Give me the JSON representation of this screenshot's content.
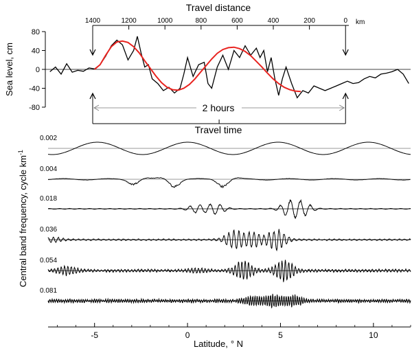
{
  "chart_data": [
    {
      "type": "line",
      "id": "sea-level",
      "top_axis": {
        "title": "Travel distance",
        "unit": "km",
        "ticks": [
          1400,
          1200,
          1000,
          800,
          600,
          400,
          200,
          0
        ]
      },
      "ylabel": "Sea level, cm",
      "ylim": [
        -80,
        80
      ],
      "yticks": [
        80,
        40,
        0,
        -40,
        -80
      ],
      "xlim": [
        -7.5,
        12
      ],
      "annotation": {
        "label": "2  hours",
        "caption": "Travel time",
        "x_start": -5.1,
        "x_end": 8.5
      },
      "series": [
        {
          "role": "observed",
          "color": "#000000",
          "x": [
            -7.4,
            -7.1,
            -6.8,
            -6.5,
            -6.2,
            -5.9,
            -5.6,
            -5.3,
            -5.0,
            -4.7,
            -4.4,
            -4.1,
            -3.8,
            -3.5,
            -3.2,
            -2.9,
            -2.7,
            -2.5,
            -2.3,
            -2.1,
            -1.9,
            -1.6,
            -1.3,
            -1.0,
            -0.7,
            -0.4,
            -0.2,
            0.0,
            0.3,
            0.6,
            0.9,
            1.1,
            1.3,
            1.6,
            1.9,
            2.2,
            2.5,
            2.8,
            3.1,
            3.4,
            3.7,
            3.9,
            4.1,
            4.3,
            4.5,
            4.7,
            4.9,
            5.1,
            5.3,
            5.6,
            5.9,
            6.2,
            6.5,
            6.8,
            7.1,
            7.4,
            7.7,
            8.0,
            8.3,
            8.6,
            8.9,
            9.2,
            9.5,
            9.8,
            10.1,
            10.4,
            10.7,
            11.0,
            11.3,
            11.6,
            11.9
          ],
          "y": [
            -5,
            5,
            -10,
            12,
            -6,
            -2,
            -4,
            3,
            1,
            10,
            28,
            50,
            62,
            52,
            20,
            40,
            70,
            35,
            5,
            10,
            -20,
            -30,
            -45,
            -38,
            -50,
            -40,
            -10,
            25,
            -15,
            10,
            15,
            -30,
            -40,
            5,
            30,
            0,
            40,
            25,
            50,
            30,
            45,
            25,
            40,
            -5,
            25,
            -20,
            -55,
            -20,
            5,
            -30,
            -60,
            -45,
            -50,
            -35,
            -40,
            -45,
            -40,
            -35,
            -30,
            -25,
            -30,
            -28,
            -20,
            -15,
            -18,
            -10,
            -8,
            -5,
            0,
            -10,
            -30
          ]
        },
        {
          "role": "fitted",
          "color": "#e8231f",
          "x": [
            -5.0,
            -4.7,
            -4.4,
            -4.1,
            -3.8,
            -3.5,
            -3.2,
            -2.9,
            -2.6,
            -2.3,
            -2.0,
            -1.7,
            -1.4,
            -1.1,
            -0.8,
            -0.5,
            -0.2,
            0.1,
            0.4,
            0.7,
            1.0,
            1.3,
            1.6,
            1.9,
            2.2,
            2.5,
            2.8,
            3.1,
            3.4,
            3.7,
            4.0,
            4.3,
            4.6,
            4.9,
            5.2,
            5.5,
            5.8,
            6.1
          ],
          "y": [
            0,
            10,
            30,
            48,
            58,
            60,
            57,
            48,
            35,
            18,
            2,
            -14,
            -28,
            -38,
            -43,
            -44,
            -40,
            -32,
            -20,
            -6,
            8,
            22,
            34,
            42,
            46,
            47,
            44,
            38,
            29,
            17,
            5,
            -8,
            -20,
            -30,
            -38,
            -43,
            -46,
            -47
          ]
        }
      ]
    },
    {
      "type": "line",
      "id": "band-filtered",
      "ylabel": "Central band frequency,  cycle  km",
      "ylabel_sup": "-1",
      "xlabel": "Latitude,",
      "xlabel_unit": "° N",
      "xlim": [
        -7.5,
        12
      ],
      "xticks": [
        -5,
        0,
        5,
        10
      ],
      "bands": [
        {
          "label": "0.002",
          "freq": 0.002,
          "envelope": {
            "peaks": [],
            "base": 14
          }
        },
        {
          "label": "0.004",
          "freq": 0.004,
          "envelope": {
            "peaks": [
              [
                -2.8,
                7
              ],
              [
                -0.8,
                10
              ],
              [
                2.0,
                10
              ]
            ],
            "base": 1
          }
        },
        {
          "label": "0.018",
          "freq": 0.018,
          "envelope": {
            "peaks": [
              [
                0.5,
                5
              ],
              [
                1.5,
                7
              ],
              [
                5.5,
                10
              ],
              [
                6.2,
                8
              ]
            ],
            "base": 0.5
          }
        },
        {
          "label": "0.036",
          "freq": 0.036,
          "envelope": {
            "peaks": [
              [
                2.5,
                12
              ],
              [
                3.5,
                10
              ],
              [
                4.8,
                13
              ],
              [
                -7.2,
                3
              ]
            ],
            "base": 0.8
          }
        },
        {
          "label": "0.054",
          "freq": 0.054,
          "envelope": {
            "peaks": [
              [
                3.0,
                12
              ],
              [
                5.2,
                14
              ],
              [
                -6.5,
                5
              ],
              [
                0.5,
                2
              ]
            ],
            "base": 1.5
          }
        },
        {
          "label": "0.081",
          "freq": 0.081,
          "envelope": {
            "peaks": [
              [
                3.5,
                5
              ],
              [
                4.6,
                7
              ],
              [
                5.7,
                6
              ]
            ],
            "base": 2
          }
        }
      ]
    }
  ]
}
